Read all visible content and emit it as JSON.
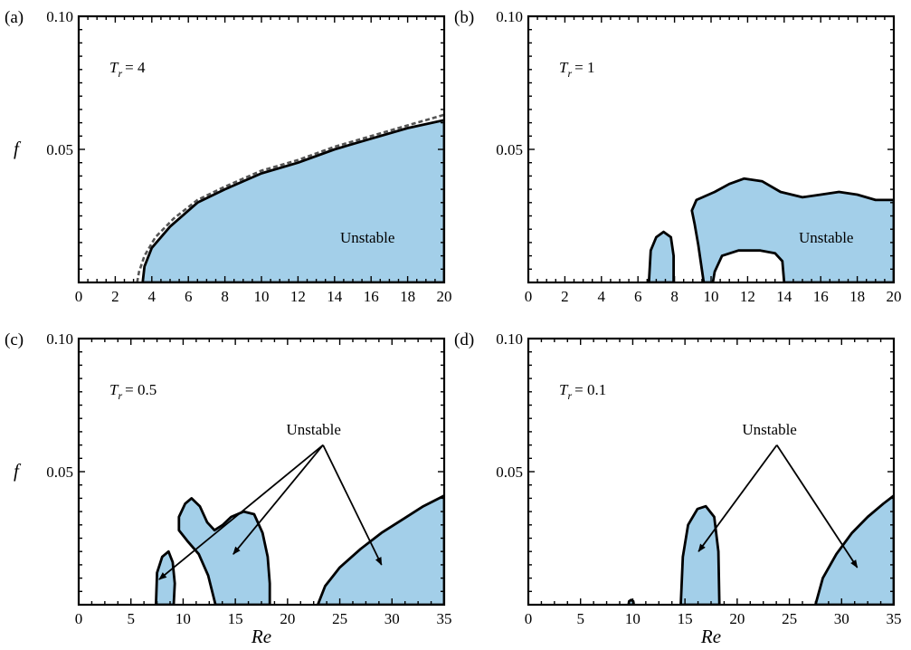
{
  "chart_data": [
    {
      "panel_label": "(a)",
      "type": "area",
      "parameter_label": {
        "symbol": "T",
        "subscript": "r",
        "value": "= 4"
      },
      "ylabel": "f",
      "xlabel": "",
      "xlim": [
        0,
        20
      ],
      "ylim": [
        0,
        0.1
      ],
      "xticks": [
        0,
        2,
        4,
        6,
        8,
        10,
        12,
        14,
        16,
        18,
        20
      ],
      "xtick_labels": [
        "0",
        "2",
        "4",
        "6",
        "8",
        "10",
        "12",
        "14",
        "16",
        "18",
        "20"
      ],
      "ytick_labels": [
        "0.05",
        "0.10"
      ],
      "annotations": [
        {
          "text": "Unstable",
          "x": 15.8,
          "y": 0.015
        }
      ],
      "dashed_boundary": [
        [
          3.2,
          0
        ],
        [
          3.3,
          0.004
        ],
        [
          3.6,
          0.01
        ],
        [
          4.2,
          0.017
        ],
        [
          5.2,
          0.024
        ],
        [
          6.5,
          0.031
        ],
        [
          8,
          0.036
        ],
        [
          10,
          0.042
        ],
        [
          12,
          0.046
        ],
        [
          14,
          0.051
        ],
        [
          16,
          0.055
        ],
        [
          18,
          0.059
        ],
        [
          20,
          0.063
        ]
      ],
      "regions": [
        {
          "name": "Unstable",
          "points": [
            [
              3.5,
              0
            ],
            [
              3.6,
              0.006
            ],
            [
              4,
              0.013
            ],
            [
              5,
              0.021
            ],
            [
              6.5,
              0.03
            ],
            [
              8,
              0.035
            ],
            [
              10,
              0.041
            ],
            [
              12,
              0.045
            ],
            [
              14,
              0.05
            ],
            [
              16,
              0.054
            ],
            [
              18,
              0.058
            ],
            [
              20,
              0.061
            ],
            [
              20,
              0
            ]
          ]
        }
      ]
    },
    {
      "panel_label": "(b)",
      "type": "area",
      "parameter_label": {
        "symbol": "T",
        "subscript": "r",
        "value": "= 1"
      },
      "ylabel": "",
      "xlabel": "",
      "xlim": [
        0,
        20
      ],
      "ylim": [
        0,
        0.1
      ],
      "xticks": [
        0,
        2,
        4,
        6,
        8,
        10,
        12,
        14,
        16,
        18,
        20
      ],
      "xtick_labels": [
        "0",
        "2",
        "4",
        "6",
        "8",
        "10",
        "12",
        "14",
        "16",
        "18",
        "20"
      ],
      "ytick_labels": [
        "0.05",
        "0.10"
      ],
      "annotations": [
        {
          "text": "Unstable",
          "x": 16.3,
          "y": 0.015
        }
      ],
      "regions": [
        {
          "name": "Unstable",
          "points": [
            [
              6.6,
              0
            ],
            [
              6.7,
              0.012
            ],
            [
              7,
              0.017
            ],
            [
              7.4,
              0.019
            ],
            [
              7.8,
              0.017
            ],
            [
              7.95,
              0.01
            ],
            [
              7.95,
              0
            ]
          ]
        },
        {
          "name": "Unstable",
          "points": [
            [
              9.6,
              0
            ],
            [
              9.3,
              0.014
            ],
            [
              9.1,
              0.022
            ],
            [
              8.95,
              0.027
            ],
            [
              9.2,
              0.031
            ],
            [
              10.2,
              0.034
            ],
            [
              11,
              0.037
            ],
            [
              11.8,
              0.039
            ],
            [
              12.8,
              0.038
            ],
            [
              13.8,
              0.034
            ],
            [
              15,
              0.032
            ],
            [
              16,
              0.033
            ],
            [
              17,
              0.034
            ],
            [
              18,
              0.033
            ],
            [
              19,
              0.031
            ],
            [
              20,
              0.031
            ],
            [
              20,
              0
            ],
            [
              14,
              0
            ],
            [
              13.9,
              0.008
            ],
            [
              13.5,
              0.011
            ],
            [
              12.7,
              0.012
            ],
            [
              11.5,
              0.012
            ],
            [
              10.6,
              0.01
            ],
            [
              10.2,
              0.004
            ],
            [
              10.1,
              0
            ]
          ]
        }
      ]
    },
    {
      "panel_label": "(c)",
      "type": "area",
      "parameter_label": {
        "symbol": "T",
        "subscript": "r",
        "value": "= 0.5"
      },
      "ylabel": "f",
      "xlabel": "Re",
      "xlim": [
        0,
        35
      ],
      "ylim": [
        0,
        0.1
      ],
      "xticks": [
        0,
        5,
        10,
        15,
        20,
        25,
        30,
        35
      ],
      "xtick_labels": [
        "0",
        "5",
        "10",
        "15",
        "20",
        "25",
        "30",
        "35"
      ],
      "ytick_labels": [
        "0.05",
        "0.10"
      ],
      "annotations": [
        {
          "text": "Unstable",
          "x": 22.5,
          "y": 0.064
        }
      ],
      "arrows": [
        {
          "from": [
            23.4,
            0.06
          ],
          "to": [
            7.7,
            0.0095
          ]
        },
        {
          "from": [
            23.4,
            0.06
          ],
          "to": [
            14.8,
            0.019
          ]
        },
        {
          "from": [
            23.4,
            0.06
          ],
          "to": [
            29,
            0.015
          ]
        }
      ],
      "regions": [
        {
          "name": "Unstable",
          "points": [
            [
              7.4,
              0
            ],
            [
              7.5,
              0.012
            ],
            [
              8,
              0.018
            ],
            [
              8.6,
              0.02
            ],
            [
              9,
              0.016
            ],
            [
              9.2,
              0.008
            ],
            [
              9.1,
              0
            ]
          ]
        },
        {
          "name": "Unstable",
          "points": [
            [
              13.1,
              0
            ],
            [
              12.4,
              0.011
            ],
            [
              11.5,
              0.019
            ],
            [
              10.4,
              0.024
            ],
            [
              9.6,
              0.028
            ],
            [
              9.6,
              0.033
            ],
            [
              10.2,
              0.038
            ],
            [
              10.8,
              0.04
            ],
            [
              11.6,
              0.037
            ],
            [
              12.3,
              0.031
            ],
            [
              13,
              0.028
            ],
            [
              13.8,
              0.03
            ],
            [
              14.6,
              0.033
            ],
            [
              15.8,
              0.035
            ],
            [
              16.8,
              0.034
            ],
            [
              17.6,
              0.027
            ],
            [
              18.1,
              0.018
            ],
            [
              18.3,
              0.008
            ],
            [
              18.3,
              0
            ]
          ]
        },
        {
          "name": "Unstable",
          "points": [
            [
              22.9,
              0
            ],
            [
              23.6,
              0.007
            ],
            [
              25,
              0.014
            ],
            [
              27,
              0.021
            ],
            [
              29,
              0.027
            ],
            [
              31,
              0.032
            ],
            [
              33,
              0.037
            ],
            [
              35,
              0.041
            ],
            [
              35,
              0
            ]
          ]
        }
      ]
    },
    {
      "panel_label": "(d)",
      "type": "area",
      "parameter_label": {
        "symbol": "T",
        "subscript": "r",
        "value": "= 0.1"
      },
      "ylabel": "",
      "xlabel": "Re",
      "xlim": [
        0,
        35
      ],
      "ylim": [
        0,
        0.1
      ],
      "xticks": [
        0,
        5,
        10,
        15,
        20,
        25,
        30,
        35
      ],
      "xtick_labels": [
        "0",
        "5",
        "10",
        "15",
        "20",
        "25",
        "30",
        "35"
      ],
      "ytick_labels": [
        "0.05",
        "0.10"
      ],
      "annotations": [
        {
          "text": "Unstable",
          "x": 23.1,
          "y": 0.064
        }
      ],
      "arrows": [
        {
          "from": [
            23.8,
            0.06
          ],
          "to": [
            16.3,
            0.02
          ]
        },
        {
          "from": [
            23.8,
            0.06
          ],
          "to": [
            31.5,
            0.014
          ]
        }
      ],
      "regions": [
        {
          "name": "Unstable",
          "points": [
            [
              9.6,
              0
            ],
            [
              9.65,
              0.0013
            ],
            [
              9.85,
              0.0018
            ],
            [
              10.05,
              0.0013
            ],
            [
              10.1,
              0
            ]
          ]
        },
        {
          "name": "Unstable",
          "points": [
            [
              14.6,
              0
            ],
            [
              14.8,
              0.018
            ],
            [
              15.3,
              0.03
            ],
            [
              16.2,
              0.036
            ],
            [
              17,
              0.037
            ],
            [
              17.8,
              0.033
            ],
            [
              18.2,
              0.02
            ],
            [
              18.3,
              0
            ]
          ]
        },
        {
          "name": "Unstable",
          "points": [
            [
              27.5,
              0
            ],
            [
              28.2,
              0.01
            ],
            [
              29.5,
              0.019
            ],
            [
              31,
              0.027
            ],
            [
              32.5,
              0.033
            ],
            [
              34,
              0.038
            ],
            [
              35,
              0.041
            ],
            [
              35,
              0
            ]
          ]
        }
      ]
    }
  ],
  "colors": {
    "unstable_fill": "#a3cfe9",
    "boundary": "#000000",
    "dashed_boundary": "#555555"
  }
}
